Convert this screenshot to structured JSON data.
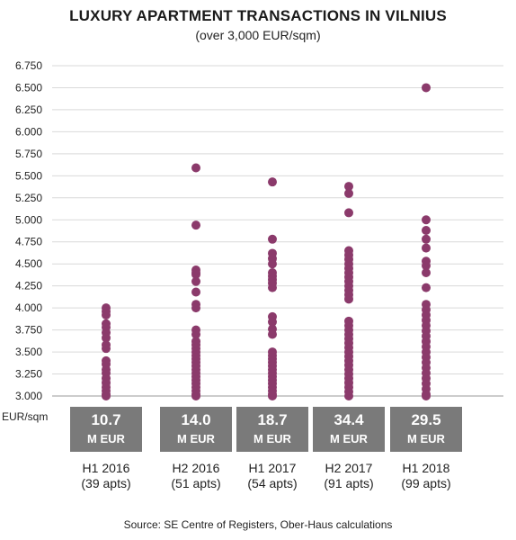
{
  "chart_data": {
    "type": "scatter",
    "title": "LUXURY APARTMENT TRANSACTIONS IN VILNIUS",
    "subtitle": "(over 3,000 EUR/sqm)",
    "ylabel": "EUR/sqm",
    "ylim": [
      3000,
      6750
    ],
    "yticks": [
      "3.000",
      "3.250",
      "3.500",
      "3.750",
      "4.000",
      "4.250",
      "4.500",
      "4.750",
      "5.000",
      "5.250",
      "5.500",
      "5.750",
      "6.000",
      "6.250",
      "6.500",
      "6.750"
    ],
    "grid": true,
    "point_color": "#8b3a6b",
    "box_color": "#7a7a7a",
    "categories": [
      {
        "period": "H1 2016",
        "apartments": "(39 apts)",
        "total_value": "10.7",
        "total_unit": "M EUR",
        "prices": [
          4000,
          3960,
          3920,
          3820,
          3780,
          3720,
          3660,
          3580,
          3540,
          3400,
          3360,
          3300,
          3260,
          3200,
          3150,
          3100,
          3060,
          3020,
          3000
        ]
      },
      {
        "period": "H2 2016",
        "apartments": "(51 apts)",
        "total_value": "14.0",
        "total_unit": "M EUR",
        "prices": [
          5590,
          4940,
          4430,
          4400,
          4380,
          4300,
          4180,
          4040,
          4000,
          3750,
          3700,
          3620,
          3580,
          3540,
          3500,
          3460,
          3420,
          3380,
          3340,
          3300,
          3260,
          3220,
          3180,
          3140,
          3100,
          3060,
          3020,
          3000
        ]
      },
      {
        "period": "H1 2017",
        "apartments": "(54 apts)",
        "total_value": "18.7",
        "total_unit": "M EUR",
        "prices": [
          5430,
          4780,
          4620,
          4560,
          4500,
          4400,
          4360,
          4320,
          4280,
          4230,
          3900,
          3840,
          3760,
          3700,
          3500,
          3460,
          3420,
          3380,
          3340,
          3300,
          3260,
          3220,
          3180,
          3140,
          3100,
          3060,
          3020,
          3000
        ]
      },
      {
        "period": "H2 2017",
        "apartments": "(91 apts)",
        "total_value": "34.4",
        "total_unit": "M EUR",
        "prices": [
          5380,
          5300,
          5080,
          4650,
          4600,
          4550,
          4500,
          4450,
          4400,
          4350,
          4300,
          4250,
          4200,
          4150,
          4100,
          3850,
          3800,
          3750,
          3700,
          3650,
          3600,
          3550,
          3500,
          3450,
          3400,
          3350,
          3300,
          3250,
          3200,
          3150,
          3100,
          3050,
          3000
        ]
      },
      {
        "period": "H1 2018",
        "apartments": "(99 apts)",
        "total_value": "29.5",
        "total_unit": "M EUR",
        "prices": [
          6500,
          5000,
          4880,
          4780,
          4680,
          4530,
          4480,
          4400,
          4230,
          4040,
          3980,
          3920,
          3860,
          3800,
          3740,
          3680,
          3620,
          3560,
          3500,
          3440,
          3380,
          3320,
          3260,
          3200,
          3140,
          3080,
          3020,
          3000
        ]
      }
    ]
  },
  "source": "Source: SE Centre of Registers, Ober-Haus calculations"
}
